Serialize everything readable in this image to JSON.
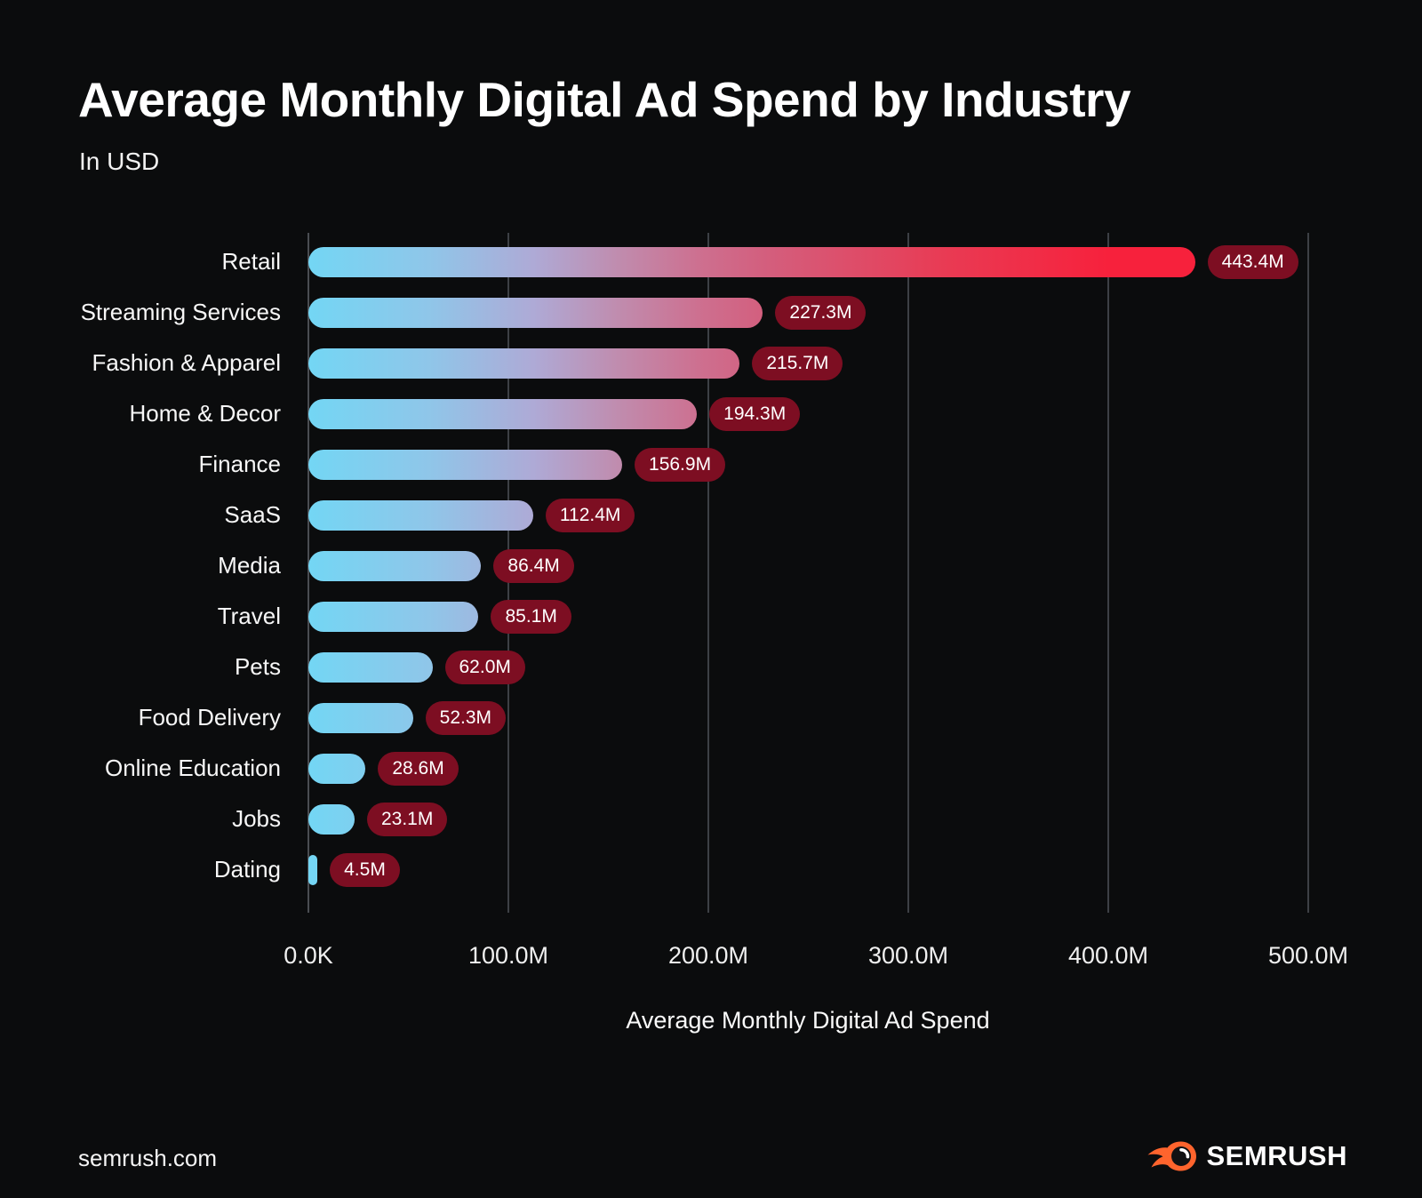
{
  "title": "Average Monthly Digital Ad Spend by Industry",
  "subtitle": "In USD",
  "footer": {
    "site": "semrush.com",
    "brand": "SEMRUSH"
  },
  "colors": {
    "background": "#0b0c0d",
    "gridline": "#3d4045",
    "badge_background": "#7d0e22",
    "bar_gradient_start_blue": "#73d6f4",
    "bar_gradient_mid_lavender": "#aeaad6",
    "bar_gradient_mid_rose": "#d35f7e",
    "bar_gradient_end_red": "#f7213c",
    "logo_orange": "#ff642d",
    "text": "#ffffff"
  },
  "chart_data": {
    "type": "bar",
    "orientation": "horizontal",
    "title": "Average Monthly Digital Ad Spend by Industry",
    "subtitle": "In USD",
    "xlabel": "Average Monthly Digital Ad Spend",
    "ylabel": "",
    "unit": "USD (millions)",
    "xlim": [
      0,
      500
    ],
    "grid": true,
    "categories": [
      "Retail",
      "Streaming Services",
      "Fashion & Apparel",
      "Home & Decor",
      "Finance",
      "SaaS",
      "Media",
      "Travel",
      "Pets",
      "Food Delivery",
      "Online Education",
      "Jobs",
      "Dating"
    ],
    "values": [
      443.4,
      227.3,
      215.7,
      194.3,
      156.9,
      112.4,
      86.4,
      85.1,
      62.0,
      52.3,
      28.6,
      23.1,
      4.5
    ],
    "value_labels": [
      "443.4M",
      "227.3M",
      "215.7M",
      "194.3M",
      "156.9M",
      "112.4M",
      "86.4M",
      "85.1M",
      "62.0M",
      "52.3M",
      "28.6M",
      "23.1M",
      "4.5M"
    ],
    "x_tick_values": [
      0,
      100,
      200,
      300,
      400,
      500
    ],
    "x_tick_labels": [
      "0.0K",
      "100.0M",
      "200.0M",
      "300.0M",
      "400.0M",
      "500.0M"
    ]
  }
}
